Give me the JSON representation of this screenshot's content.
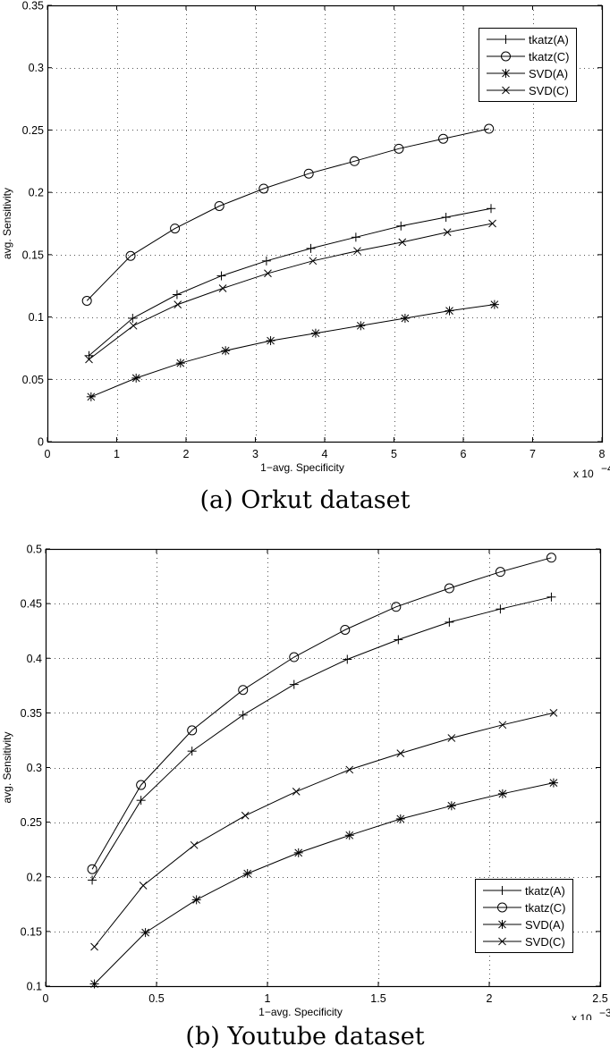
{
  "figures": [
    {
      "caption": "(a) Orkut dataset",
      "legend_position": "upper right"
    },
    {
      "caption": "(b) Youtube dataset",
      "legend_position": "lower right"
    }
  ],
  "chart_data": [
    {
      "type": "line",
      "title": "(a) Orkut dataset",
      "xlabel": "1−avg. Specificity",
      "ylabel": "avg. Sensitivity",
      "x_multiplier": "x 10^-4",
      "xlim": [
        0,
        8
      ],
      "ylim": [
        0,
        0.35
      ],
      "xticks": [
        "0",
        "1",
        "2",
        "3",
        "4",
        "5",
        "6",
        "7",
        "8"
      ],
      "yticks": [
        "0",
        "0.05",
        "0.1",
        "0.15",
        "0.2",
        "0.25",
        "0.3",
        "0.35"
      ],
      "grid": true,
      "legend_position": "upper right",
      "series": [
        {
          "name": "tkatz(A)",
          "marker": "plus",
          "x": [
            0.6,
            1.23,
            1.87,
            2.51,
            3.16,
            3.8,
            4.45,
            5.1,
            5.75,
            6.4
          ],
          "values": [
            0.069,
            0.099,
            0.118,
            0.133,
            0.145,
            0.155,
            0.164,
            0.173,
            0.18,
            0.187
          ]
        },
        {
          "name": "tkatz(C)",
          "marker": "circle",
          "x": [
            0.57,
            1.2,
            1.84,
            2.48,
            3.12,
            3.77,
            4.43,
            5.07,
            5.71,
            6.37
          ],
          "values": [
            0.113,
            0.149,
            0.171,
            0.189,
            0.203,
            0.215,
            0.225,
            0.235,
            0.243,
            0.251
          ]
        },
        {
          "name": "SVD(A)",
          "marker": "star",
          "x": [
            0.63,
            1.28,
            1.92,
            2.57,
            3.22,
            3.87,
            4.52,
            5.16,
            5.8,
            6.45
          ],
          "values": [
            0.036,
            0.051,
            0.063,
            0.073,
            0.081,
            0.087,
            0.093,
            0.099,
            0.105,
            0.11
          ]
        },
        {
          "name": "SVD(C)",
          "marker": "x",
          "x": [
            0.6,
            1.24,
            1.88,
            2.53,
            3.18,
            3.83,
            4.47,
            5.12,
            5.77,
            6.42
          ],
          "values": [
            0.066,
            0.093,
            0.11,
            0.123,
            0.135,
            0.145,
            0.153,
            0.16,
            0.168,
            0.175
          ]
        }
      ]
    },
    {
      "type": "line",
      "title": "(b) Youtube dataset",
      "xlabel": "1−avg. Specificity",
      "ylabel": "avg. Sensitivity",
      "x_multiplier": "x 10^-3",
      "xlim": [
        0,
        2.5
      ],
      "ylim": [
        0.1,
        0.5
      ],
      "xticks": [
        "0",
        "0.5",
        "1",
        "1.5",
        "2",
        "2.5"
      ],
      "yticks": [
        "0.1",
        "0.15",
        "0.2",
        "0.25",
        "0.3",
        "0.35",
        "0.4",
        "0.45",
        "0.5"
      ],
      "grid": true,
      "legend_position": "lower right",
      "series": [
        {
          "name": "tkatz(A)",
          "marker": "plus",
          "x": [
            0.21,
            0.43,
            0.66,
            0.89,
            1.12,
            1.36,
            1.59,
            1.82,
            2.05,
            2.28
          ],
          "values": [
            0.197,
            0.27,
            0.315,
            0.348,
            0.376,
            0.399,
            0.417,
            0.433,
            0.445,
            0.456
          ]
        },
        {
          "name": "tkatz(C)",
          "marker": "circle",
          "x": [
            0.21,
            0.43,
            0.66,
            0.89,
            1.12,
            1.35,
            1.58,
            1.82,
            2.05,
            2.28
          ],
          "values": [
            0.207,
            0.284,
            0.334,
            0.371,
            0.401,
            0.426,
            0.447,
            0.464,
            0.479,
            0.492
          ]
        },
        {
          "name": "SVD(A)",
          "marker": "star",
          "x": [
            0.22,
            0.45,
            0.68,
            0.91,
            1.14,
            1.37,
            1.6,
            1.83,
            2.06,
            2.29
          ],
          "values": [
            0.102,
            0.149,
            0.179,
            0.203,
            0.222,
            0.238,
            0.253,
            0.265,
            0.276,
            0.286
          ]
        },
        {
          "name": "SVD(C)",
          "marker": "x",
          "x": [
            0.22,
            0.44,
            0.67,
            0.9,
            1.13,
            1.37,
            1.6,
            1.83,
            2.06,
            2.29
          ],
          "values": [
            0.136,
            0.192,
            0.229,
            0.256,
            0.278,
            0.298,
            0.313,
            0.327,
            0.339,
            0.35
          ]
        }
      ]
    }
  ]
}
